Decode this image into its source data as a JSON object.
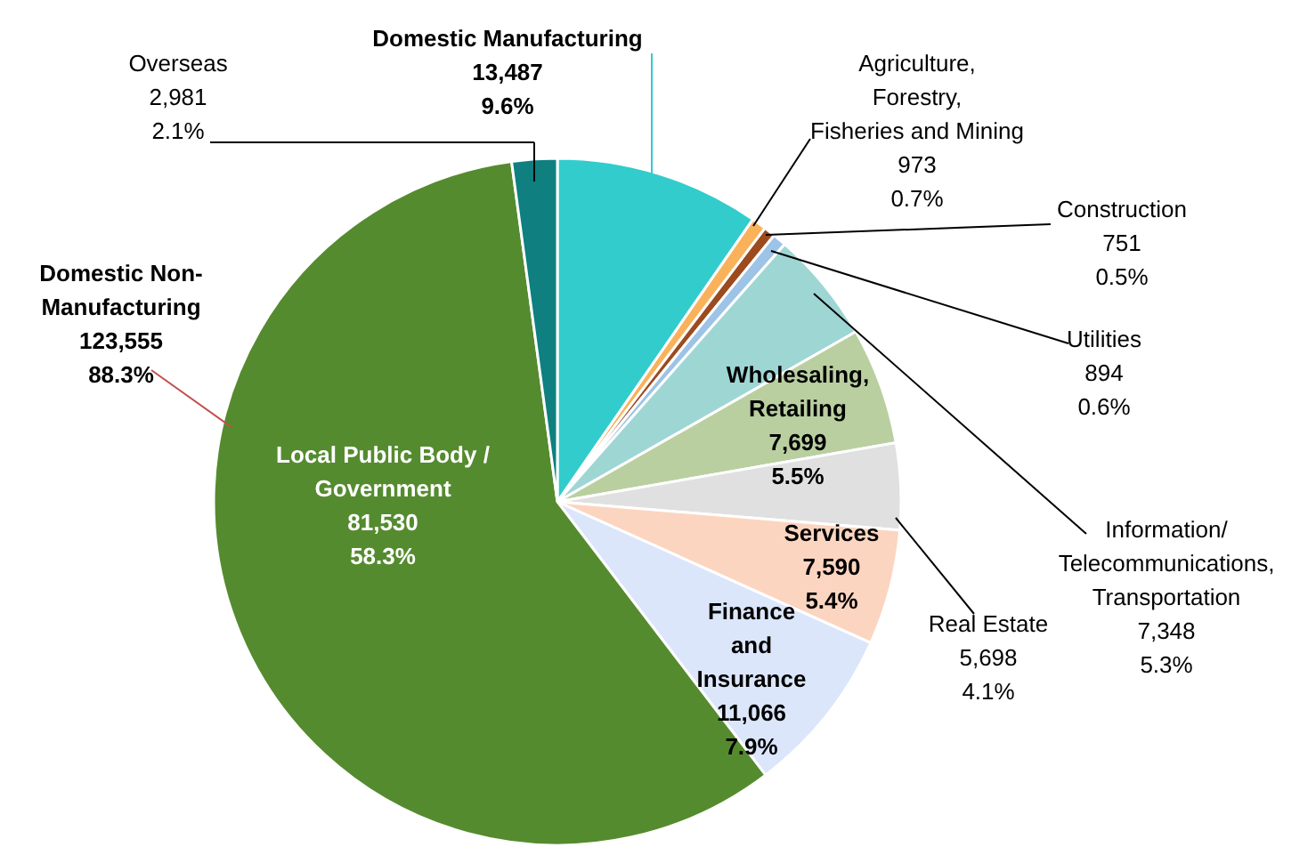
{
  "chart_data": {
    "type": "pie",
    "categories": [
      "Domestic Manufacturing",
      "Agriculture,\nForestry,\nFisheries and Mining",
      "Construction",
      "Utilities",
      "Information/\nTelecommunications,\nTransportation",
      "Wholesaling,\nRetailing",
      "Real Estate",
      "Services",
      "Finance\nand\nInsurance",
      "Local Public Body /\nGovernment",
      "Overseas"
    ],
    "values": [
      13487,
      973,
      751,
      894,
      7348,
      7699,
      5698,
      7590,
      11066,
      81530,
      2981
    ],
    "value_labels": [
      "13,487\n9.6%",
      "973\n0.7%",
      "751\n0.5%",
      "894\n0.6%",
      "7,348\n5.3%",
      "7,699\n5.5%",
      "5,698\n4.1%",
      "7,590\n5.4%",
      "11,066\n7.9%",
      "81,530\n58.3%",
      "2,981\n2.1%"
    ],
    "colors": [
      "#33cccc",
      "#f9b25a",
      "#9c4a1e",
      "#9dc3e6",
      "#9ed6d4",
      "#b9cfa0",
      "#e0e0e0",
      "#fcd5c0",
      "#dce6fa",
      "#558b2f",
      "#0f7f7f"
    ],
    "annotations": [
      "Domestic Non-\nManufacturing\n123,555\n88.3%"
    ]
  }
}
